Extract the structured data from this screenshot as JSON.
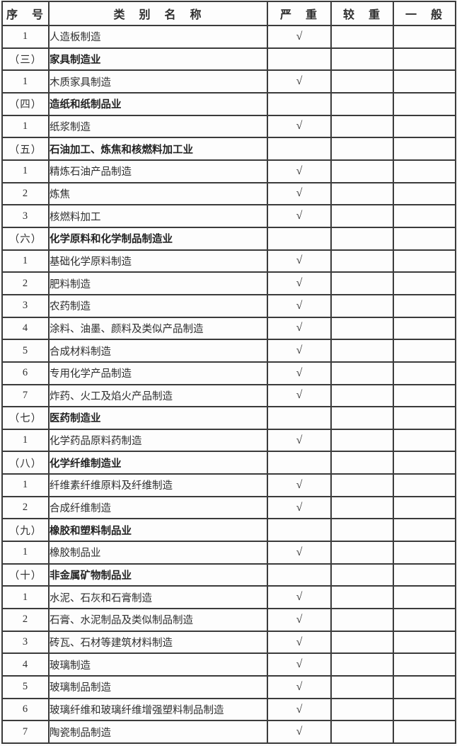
{
  "table": {
    "headers": {
      "serial": "序　号",
      "category": "类　别　名　称",
      "severe": "严　重",
      "moderate": "较　重",
      "general": "一　般"
    },
    "checkmark_glyph": "√",
    "colors": {
      "border": "#3b3b3b",
      "text": "#2e2e2e",
      "background": "#fbfbfb"
    },
    "rows": [
      {
        "no": "1",
        "name": "人造板制造",
        "section": false,
        "severe": true,
        "moderate": false,
        "general": false
      },
      {
        "no": "（三）",
        "name": "家具制造业",
        "section": true,
        "severe": false,
        "moderate": false,
        "general": false
      },
      {
        "no": "1",
        "name": "木质家具制造",
        "section": false,
        "severe": true,
        "moderate": false,
        "general": false
      },
      {
        "no": "（四）",
        "name": "造纸和纸制品业",
        "section": true,
        "severe": false,
        "moderate": false,
        "general": false
      },
      {
        "no": "1",
        "name": "纸浆制造",
        "section": false,
        "severe": true,
        "moderate": false,
        "general": false
      },
      {
        "no": "（五）",
        "name": "石油加工、炼焦和核燃料加工业",
        "section": true,
        "severe": false,
        "moderate": false,
        "general": false
      },
      {
        "no": "1",
        "name": "精炼石油产品制造",
        "section": false,
        "severe": true,
        "moderate": false,
        "general": false
      },
      {
        "no": "2",
        "name": "炼焦",
        "section": false,
        "severe": true,
        "moderate": false,
        "general": false
      },
      {
        "no": "3",
        "name": "核燃料加工",
        "section": false,
        "severe": true,
        "moderate": false,
        "general": false
      },
      {
        "no": "（六）",
        "name": "化学原料和化学制品制造业",
        "section": true,
        "severe": false,
        "moderate": false,
        "general": false
      },
      {
        "no": "1",
        "name": "基础化学原料制造",
        "section": false,
        "severe": true,
        "moderate": false,
        "general": false
      },
      {
        "no": "2",
        "name": "肥料制造",
        "section": false,
        "severe": true,
        "moderate": false,
        "general": false
      },
      {
        "no": "3",
        "name": "农药制造",
        "section": false,
        "severe": true,
        "moderate": false,
        "general": false
      },
      {
        "no": "4",
        "name": "涂料、油墨、颜料及类似产品制造",
        "section": false,
        "severe": true,
        "moderate": false,
        "general": false
      },
      {
        "no": "5",
        "name": "合成材料制造",
        "section": false,
        "severe": true,
        "moderate": false,
        "general": false
      },
      {
        "no": "6",
        "name": "专用化学产品制造",
        "section": false,
        "severe": true,
        "moderate": false,
        "general": false
      },
      {
        "no": "7",
        "name": "炸药、火工及焰火产品制造",
        "section": false,
        "severe": true,
        "moderate": false,
        "general": false
      },
      {
        "no": "（七）",
        "name": "医药制造业",
        "section": true,
        "severe": false,
        "moderate": false,
        "general": false
      },
      {
        "no": "1",
        "name": "化学药品原料药制造",
        "section": false,
        "severe": true,
        "moderate": false,
        "general": false
      },
      {
        "no": "（八）",
        "name": "化学纤维制造业",
        "section": true,
        "severe": false,
        "moderate": false,
        "general": false
      },
      {
        "no": "1",
        "name": "纤维素纤维原料及纤维制造",
        "section": false,
        "severe": true,
        "moderate": false,
        "general": false
      },
      {
        "no": "2",
        "name": "合成纤维制造",
        "section": false,
        "severe": true,
        "moderate": false,
        "general": false
      },
      {
        "no": "（九）",
        "name": "橡胶和塑料制品业",
        "section": true,
        "severe": false,
        "moderate": false,
        "general": false
      },
      {
        "no": "1",
        "name": "橡胶制品业",
        "section": false,
        "severe": true,
        "moderate": false,
        "general": false
      },
      {
        "no": "（十）",
        "name": "非金属矿物制品业",
        "section": true,
        "severe": false,
        "moderate": false,
        "general": false
      },
      {
        "no": "1",
        "name": "水泥、石灰和石膏制造",
        "section": false,
        "severe": true,
        "moderate": false,
        "general": false
      },
      {
        "no": "2",
        "name": "石膏、水泥制品及类似制品制造",
        "section": false,
        "severe": true,
        "moderate": false,
        "general": false
      },
      {
        "no": "3",
        "name": "砖瓦、石材等建筑材料制造",
        "section": false,
        "severe": true,
        "moderate": false,
        "general": false
      },
      {
        "no": "4",
        "name": "玻璃制造",
        "section": false,
        "severe": true,
        "moderate": false,
        "general": false
      },
      {
        "no": "5",
        "name": "玻璃制品制造",
        "section": false,
        "severe": true,
        "moderate": false,
        "general": false
      },
      {
        "no": "6",
        "name": "玻璃纤维和玻璃纤维增强塑料制品制造",
        "section": false,
        "severe": true,
        "moderate": false,
        "general": false
      },
      {
        "no": "7",
        "name": "陶瓷制品制造",
        "section": false,
        "severe": true,
        "moderate": false,
        "general": false
      }
    ]
  }
}
